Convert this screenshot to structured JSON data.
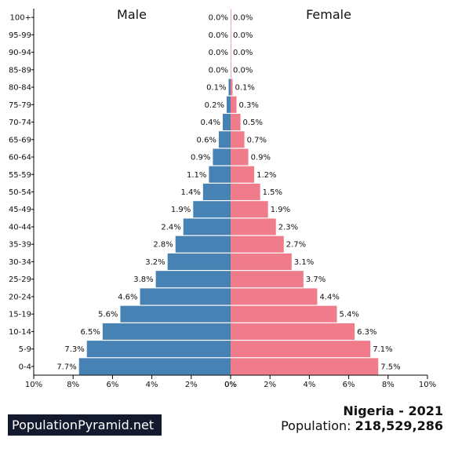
{
  "brand": "PopulationPyramid.net",
  "country_year": "Nigeria - 2021",
  "population_label": "Population:",
  "population_value": "218,529,286",
  "colors": {
    "male": "#4682b4",
    "female": "#f07b8a",
    "axis": "#000000"
  },
  "chart_data": {
    "type": "bar",
    "orientation": "horizontal",
    "categories": [
      "0-4",
      "5-9",
      "10-14",
      "15-19",
      "20-24",
      "25-29",
      "30-34",
      "35-39",
      "40-44",
      "45-49",
      "50-54",
      "55-59",
      "60-64",
      "65-69",
      "70-74",
      "75-79",
      "80-84",
      "85-89",
      "90-94",
      "95-99",
      "100+"
    ],
    "series": [
      {
        "name": "Male",
        "values": [
          7.7,
          7.3,
          6.5,
          5.6,
          4.6,
          3.8,
          3.2,
          2.8,
          2.4,
          1.9,
          1.4,
          1.1,
          0.9,
          0.6,
          0.4,
          0.2,
          0.1,
          0.0,
          0.0,
          0.0,
          0.0
        ],
        "labels": [
          "7.7%",
          "7.3%",
          "6.5%",
          "5.6%",
          "4.6%",
          "3.8%",
          "3.2%",
          "2.8%",
          "2.4%",
          "1.9%",
          "1.4%",
          "1.1%",
          "0.9%",
          "0.6%",
          "0.4%",
          "0.2%",
          "0.1%",
          "0.0%",
          "0.0%",
          "0.0%",
          "0.0%"
        ]
      },
      {
        "name": "Female",
        "values": [
          7.5,
          7.1,
          6.3,
          5.4,
          4.4,
          3.7,
          3.1,
          2.7,
          2.3,
          1.9,
          1.5,
          1.2,
          0.9,
          0.7,
          0.5,
          0.3,
          0.1,
          0.0,
          0.0,
          0.0,
          0.0
        ],
        "labels": [
          "7.5%",
          "7.1%",
          "6.3%",
          "5.4%",
          "4.4%",
          "3.7%",
          "3.1%",
          "2.7%",
          "2.3%",
          "1.9%",
          "1.5%",
          "1.2%",
          "0.9%",
          "0.7%",
          "0.5%",
          "0.3%",
          "0.1%",
          "0.0%",
          "0.0%",
          "0.0%",
          "0.0%"
        ]
      }
    ],
    "xlim": [
      0,
      10
    ],
    "xticks": [
      0,
      2,
      4,
      6,
      8,
      10
    ],
    "left_tick_labels": [
      "10%",
      "8%",
      "6%",
      "4%",
      "2%",
      "0%"
    ],
    "right_tick_labels": [
      "0%",
      "2%",
      "4%",
      "6%",
      "8%",
      "10%"
    ],
    "grid": false
  }
}
